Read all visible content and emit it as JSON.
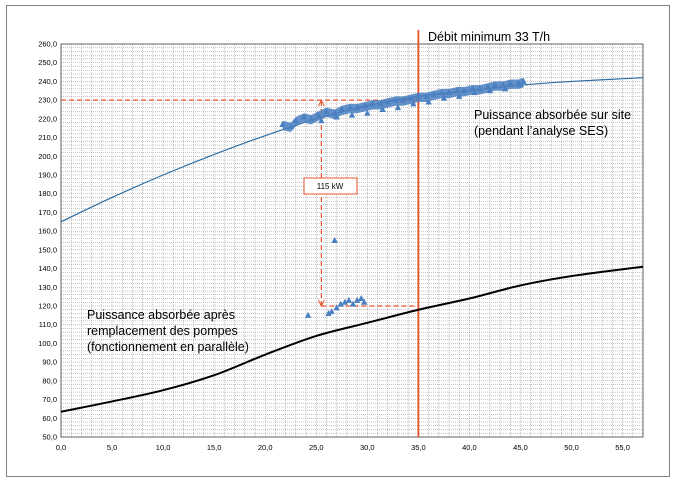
{
  "chart_data": {
    "type": "scatter",
    "xlim": [
      0,
      57
    ],
    "ylim": [
      50,
      260
    ],
    "x_ticks": [
      "0,0",
      "5,0",
      "10,0",
      "15,0",
      "20,0",
      "25,0",
      "30,0",
      "35,0",
      "40,0",
      "45,0",
      "50,0",
      "55,0"
    ],
    "y_ticks": [
      "50,0",
      "60,0",
      "70,0",
      "80,0",
      "90,0",
      "100,0",
      "110,0",
      "120,0",
      "130,0",
      "140,0",
      "150,0",
      "160,0",
      "170,0",
      "180,0",
      "190,0",
      "200,0",
      "210,0",
      "220,0",
      "230,0",
      "240,0",
      "250,0",
      "260,0"
    ],
    "grid": true,
    "series": [
      {
        "kind": "line",
        "color": "#2e6da4",
        "x": [
          0,
          5,
          10,
          15,
          20,
          25,
          30,
          35,
          40,
          45,
          50,
          57
        ],
        "y": [
          165,
          178,
          190,
          201,
          211,
          220,
          227,
          232,
          235,
          238,
          240,
          242
        ]
      },
      {
        "kind": "line",
        "color": "#000000",
        "x": [
          0,
          5,
          10,
          15,
          20,
          25,
          30,
          35,
          40,
          45,
          50,
          57
        ],
        "y": [
          63.5,
          69,
          75,
          83,
          94,
          104,
          111,
          118,
          124,
          131,
          136,
          141
        ]
      },
      {
        "kind": "scatter",
        "color": "#4a7fc1",
        "x": [
          21.7,
          22.5,
          23.0,
          23.8,
          24.5,
          25.2,
          26.0,
          26.8,
          27.5,
          28.3,
          29.0,
          29.8,
          30.5,
          31.3,
          32.0,
          32.8,
          33.5,
          34.3,
          35.0,
          35.8,
          36.5,
          37.3,
          38.0,
          38.8,
          39.5,
          40.3,
          41.0,
          41.8,
          42.5,
          43.3,
          44.0,
          44.8,
          45.3,
          25.5,
          27.0,
          28.5,
          30.0,
          31.5,
          33.0,
          34.5,
          36.0,
          37.5,
          39.0,
          40.5,
          42.0,
          43.5,
          45.0
        ],
        "y": [
          217,
          216,
          219,
          221,
          220,
          222,
          224,
          223,
          225,
          226,
          226,
          227,
          228,
          228,
          229,
          230,
          230,
          231,
          232,
          232,
          233,
          234,
          234,
          235,
          235,
          236,
          236,
          237,
          238,
          238,
          239,
          239,
          240,
          219,
          221,
          222,
          223,
          225,
          226,
          228,
          229,
          231,
          232,
          234,
          235,
          236,
          238
        ]
      },
      {
        "kind": "scatter",
        "color": "#4a7fc1",
        "x": [
          24.2,
          26.2,
          26.5,
          27.0,
          27.4,
          27.8,
          28.2,
          28.6,
          29.0,
          29.4,
          29.7,
          26.8
        ],
        "y": [
          115,
          116,
          117,
          119,
          121,
          122,
          123,
          121,
          123,
          124,
          122,
          155
        ]
      }
    ],
    "reference_lines": [
      {
        "orientation": "vertical",
        "x": 35,
        "color": "#e8522d"
      },
      {
        "orientation": "horizontal",
        "y": 230,
        "x_from": 0,
        "x_to": 35,
        "style": "dashed",
        "color": "#e8522d"
      },
      {
        "orientation": "horizontal",
        "y": 120,
        "x_from": 25.5,
        "x_to": 35,
        "style": "dashed",
        "color": "#e8522d"
      },
      {
        "orientation": "vertical",
        "x": 25.5,
        "y_from": 120,
        "y_to": 230,
        "style": "dashed",
        "color": "#e8522d"
      }
    ],
    "annotations": {
      "debit": "Débit minimum 33 T/h",
      "site_line1": "Puissance absorbée sur site",
      "site_line2": "(pendant l’analyse SES)",
      "after_line1": "Puissance absorbée après",
      "after_line2": "remplacement des pompes",
      "after_line3": "(fonctionnement en parallèle)",
      "box": "115 kW"
    }
  }
}
